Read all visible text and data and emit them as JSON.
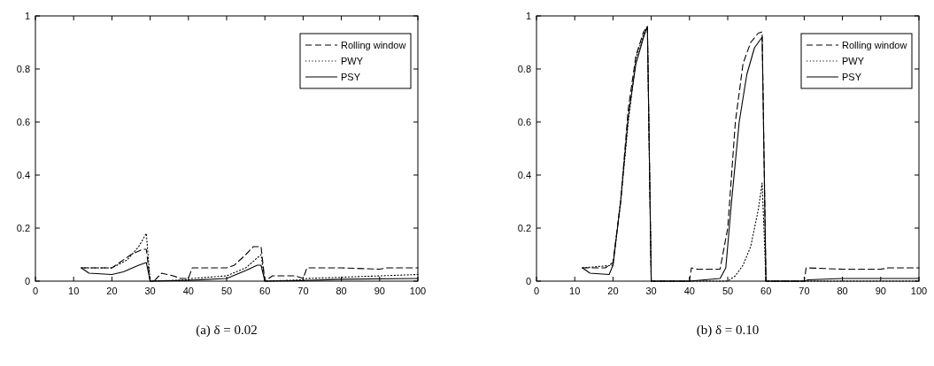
{
  "chart_data": [
    {
      "type": "line",
      "title": "(a) δ = 0.02",
      "xlim": [
        0,
        100
      ],
      "ylim": [
        0,
        1
      ],
      "xticks": [
        0,
        10,
        20,
        30,
        40,
        50,
        60,
        70,
        80,
        90,
        100
      ],
      "yticks": [
        0,
        0.2,
        0.4,
        0.6,
        0.8,
        1
      ],
      "legend": "top right",
      "grid": false,
      "series": [
        {
          "name": "Rolling window",
          "color": "#000000",
          "line_style": "dashed",
          "x": [
            12,
            15,
            20,
            22,
            25,
            28,
            29,
            30,
            31,
            33,
            36,
            38,
            40,
            41,
            45,
            50,
            52,
            55,
            57,
            59,
            60,
            62,
            65,
            68,
            70,
            71,
            80,
            90,
            92,
            100
          ],
          "values": [
            0.05,
            0.05,
            0.05,
            0.07,
            0.1,
            0.12,
            0.12,
            0,
            0,
            0.03,
            0.02,
            0.01,
            0.01,
            0.05,
            0.05,
            0.05,
            0.06,
            0.1,
            0.13,
            0.13,
            0,
            0.02,
            0.02,
            0.02,
            0.01,
            0.05,
            0.05,
            0.045,
            0.05,
            0.05
          ]
        },
        {
          "name": "PWY",
          "color": "#000000",
          "line_style": "dotted",
          "x": [
            12,
            15,
            20,
            24,
            27,
            29,
            30,
            40,
            41,
            50,
            55,
            59,
            60,
            70,
            71,
            100
          ],
          "values": [
            0.05,
            0.05,
            0.05,
            0.08,
            0.13,
            0.18,
            0,
            0.005,
            0.01,
            0.02,
            0.05,
            0.1,
            0,
            0.005,
            0.01,
            0.025
          ]
        },
        {
          "name": "PSY",
          "color": "#000000",
          "line_style": "solid",
          "x": [
            12,
            14,
            20,
            23,
            27,
            29,
            30,
            40,
            50,
            55,
            58,
            59,
            60,
            70,
            80,
            100
          ],
          "values": [
            0.05,
            0.03,
            0.025,
            0.035,
            0.06,
            0.07,
            0,
            0.003,
            0.01,
            0.04,
            0.06,
            0.06,
            0,
            0.002,
            0.007,
            0.01
          ]
        }
      ]
    },
    {
      "type": "line",
      "title": "(b) δ = 0.10",
      "xlim": [
        0,
        100
      ],
      "ylim": [
        0,
        1
      ],
      "xticks": [
        0,
        10,
        20,
        30,
        40,
        50,
        60,
        70,
        80,
        90,
        100
      ],
      "yticks": [
        0,
        0.2,
        0.4,
        0.6,
        0.8,
        1
      ],
      "legend": "top right",
      "grid": false,
      "series": [
        {
          "name": "Rolling window",
          "color": "#000000",
          "line_style": "dashed",
          "x": [
            12,
            18,
            20,
            22,
            24,
            26,
            28,
            29,
            30,
            40,
            40.5,
            42,
            48,
            50,
            52,
            54,
            56,
            58,
            59,
            60,
            70,
            70.5,
            80,
            90,
            92,
            100
          ],
          "values": [
            0.05,
            0.05,
            0.07,
            0.3,
            0.65,
            0.85,
            0.94,
            0.96,
            0,
            0,
            0.05,
            0.045,
            0.045,
            0.2,
            0.6,
            0.82,
            0.9,
            0.935,
            0.94,
            0,
            0,
            0.05,
            0.045,
            0.045,
            0.05,
            0.05
          ]
        },
        {
          "name": "PWY",
          "color": "#000000",
          "line_style": "dotted",
          "x": [
            12,
            20,
            22,
            24,
            26,
            28,
            29,
            30,
            50,
            52,
            54,
            56,
            58,
            59,
            60,
            100
          ],
          "values": [
            0.05,
            0.06,
            0.3,
            0.6,
            0.84,
            0.93,
            0.96,
            0,
            0,
            0.02,
            0.06,
            0.13,
            0.27,
            0.37,
            0,
            0
          ]
        },
        {
          "name": "PSY",
          "color": "#000000",
          "line_style": "solid",
          "x": [
            12,
            14,
            19,
            20,
            22,
            24,
            26,
            28,
            29,
            30,
            40,
            48,
            49.5,
            51,
            53,
            55,
            57,
            59,
            60,
            70,
            71,
            80,
            100
          ],
          "values": [
            0.05,
            0.03,
            0.025,
            0.06,
            0.3,
            0.62,
            0.82,
            0.92,
            0.96,
            0,
            0,
            0.01,
            0.05,
            0.3,
            0.6,
            0.78,
            0.88,
            0.92,
            0,
            0,
            0.005,
            0.01,
            0.01
          ]
        }
      ]
    }
  ]
}
